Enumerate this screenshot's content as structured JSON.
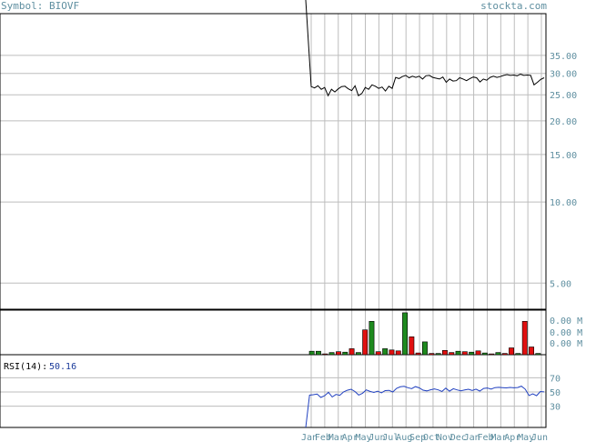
{
  "header": {
    "symbol_text": "Symbol: BIOVF",
    "site_text": "stockta.com"
  },
  "chart_data": [
    {
      "type": "line",
      "panel": "price",
      "y_scale": "log",
      "ylim": [
        4.0,
        50.0
      ],
      "y_ticks": [
        35,
        30,
        25,
        20,
        15,
        10,
        5
      ],
      "y_tick_labels": [
        "35.00",
        "30.00",
        "25.00",
        "20.00",
        "15.00",
        "10.00",
        "5.00"
      ],
      "x_labels": [
        "Jan",
        "Feb",
        "Mar",
        "Apr",
        "May",
        "Jun",
        "Jul",
        "Aug",
        "Sep",
        "Oct",
        "Nov",
        "Dec",
        "Jan",
        "Feb",
        "Mar",
        "Apr",
        "May",
        "Jun"
      ],
      "grid": true,
      "series": [
        {
          "values": [
            26.8,
            26.5,
            27.0,
            26.2,
            26.6,
            24.8,
            26.2,
            25.6,
            26.3,
            26.8,
            26.9,
            26.3,
            25.9,
            27.0,
            24.8,
            25.3,
            26.6,
            26.2,
            27.2,
            26.9,
            26.4,
            26.7,
            25.8,
            26.9,
            26.4,
            29.0,
            28.7,
            29.2,
            29.5,
            28.9,
            29.3,
            29.0,
            29.3,
            28.6,
            29.4,
            29.5,
            29.0,
            28.8,
            28.6,
            29.1,
            27.8,
            28.6,
            28.1,
            28.2,
            28.9,
            28.6,
            28.2,
            28.7,
            29.1,
            28.9,
            27.9,
            28.6,
            28.3,
            29.0,
            29.3,
            29.0,
            29.2,
            29.5,
            29.7,
            29.5,
            29.6,
            29.4,
            29.8,
            29.5,
            29.6,
            29.5,
            27.2,
            27.8,
            28.5,
            28.9
          ]
        }
      ]
    },
    {
      "type": "bar",
      "panel": "volume",
      "y_tick_labels": [
        "0.00 M",
        "0.00 M",
        "0.00 M"
      ],
      "ylim": [
        0,
        100
      ],
      "bars": [
        {
          "v": 8,
          "up": true
        },
        {
          "v": 8,
          "up": true
        },
        {
          "v": 2,
          "up": false
        },
        {
          "v": 5,
          "up": true
        },
        {
          "v": 7,
          "up": false
        },
        {
          "v": 6,
          "up": true
        },
        {
          "v": 14,
          "up": false
        },
        {
          "v": 5,
          "up": true
        },
        {
          "v": 58,
          "up": false
        },
        {
          "v": 78,
          "up": true
        },
        {
          "v": 7,
          "up": false
        },
        {
          "v": 14,
          "up": true
        },
        {
          "v": 11,
          "up": false
        },
        {
          "v": 9,
          "up": false
        },
        {
          "v": 98,
          "up": true
        },
        {
          "v": 42,
          "up": false
        },
        {
          "v": 4,
          "up": false
        },
        {
          "v": 30,
          "up": true
        },
        {
          "v": 3,
          "up": false
        },
        {
          "v": 3,
          "up": true
        },
        {
          "v": 10,
          "up": false
        },
        {
          "v": 5,
          "up": false
        },
        {
          "v": 8,
          "up": true
        },
        {
          "v": 7,
          "up": false
        },
        {
          "v": 6,
          "up": true
        },
        {
          "v": 9,
          "up": false
        },
        {
          "v": 4,
          "up": true
        },
        {
          "v": 2,
          "up": false
        },
        {
          "v": 5,
          "up": true
        },
        {
          "v": 3,
          "up": false
        },
        {
          "v": 16,
          "up": false
        },
        {
          "v": 3,
          "up": true
        },
        {
          "v": 78,
          "up": false
        },
        {
          "v": 18,
          "up": false
        },
        {
          "v": 3,
          "up": true
        }
      ]
    },
    {
      "type": "line",
      "panel": "rsi",
      "label": "RSI(14):",
      "last_value": "50.16",
      "ylim": [
        0,
        100
      ],
      "y_ticks": [
        70,
        50,
        30
      ],
      "y_tick_labels": [
        "70",
        "50",
        "30"
      ],
      "series": [
        {
          "values": [
            0,
            45.5,
            46.2,
            47.1,
            42.3,
            44.8,
            49.6,
            43.0,
            46.5,
            45.2,
            50.1,
            52.4,
            53.8,
            50.6,
            45.7,
            48.2,
            52.9,
            50.8,
            49.4,
            51.1,
            48.8,
            51.9,
            52.3,
            50.0,
            55.1,
            57.3,
            57.9,
            56.0,
            54.7,
            57.6,
            55.8,
            52.6,
            51.6,
            53.1,
            54.3,
            52.9,
            50.8,
            55.4,
            51.2,
            54.6,
            53.0,
            51.7,
            52.8,
            53.9,
            52.2,
            54.0,
            51.3,
            55.0,
            55.6,
            54.1,
            56.2,
            56.5,
            56.1,
            55.8,
            56.4,
            55.9,
            56.3,
            58.2,
            54.0,
            45.0,
            47.3,
            44.8,
            50.6,
            50.16
          ]
        }
      ]
    }
  ]
}
